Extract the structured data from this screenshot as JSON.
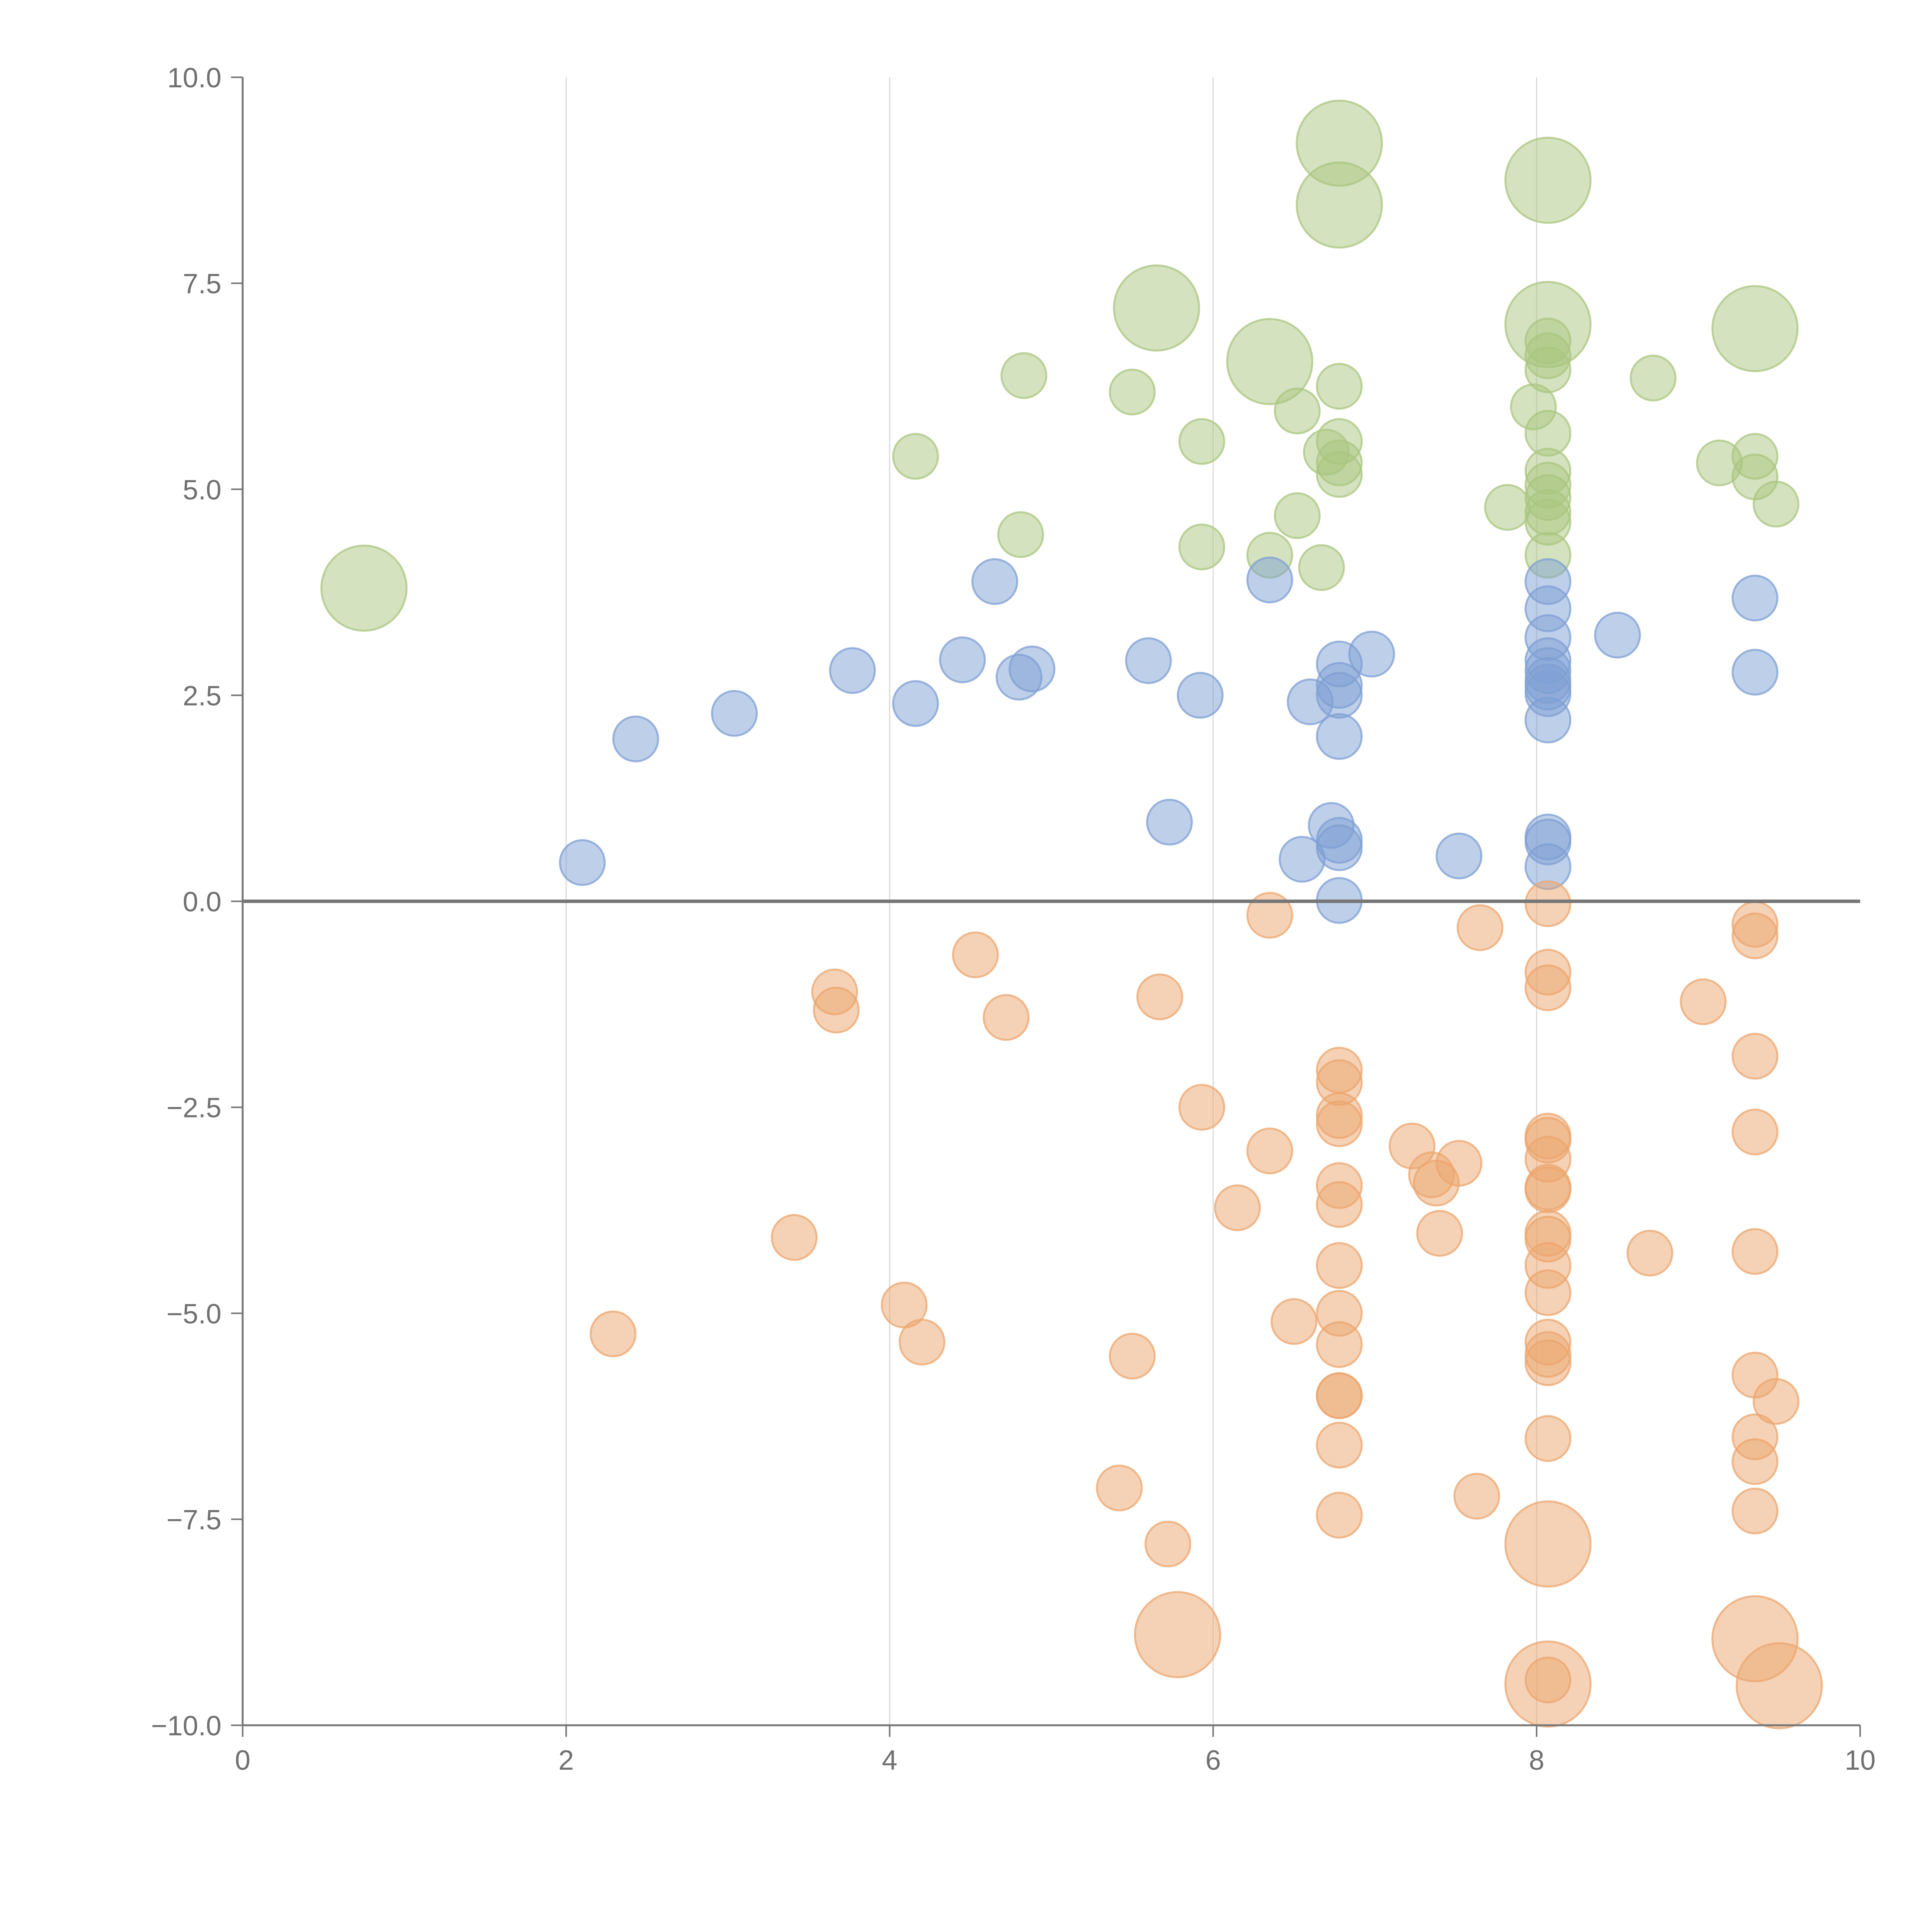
{
  "chart_data": {
    "type": "scatter",
    "title": "",
    "xlabel": "",
    "ylabel": "",
    "xlim": [
      0,
      10
    ],
    "ylim": [
      -10,
      10
    ],
    "x_ticks": [
      "0",
      "2",
      "4",
      "6",
      "8",
      "10"
    ],
    "y_ticks": [
      "10.0",
      "7.5",
      "5.0",
      "2.5",
      "0.0",
      "−2.5",
      "−5.0",
      "−7.5",
      "−10.0"
    ],
    "x_tick_values": [
      0,
      2,
      4,
      6,
      8,
      10
    ],
    "y_tick_values": [
      10,
      7.5,
      5,
      2.5,
      0,
      -2.5,
      -5,
      -7.5,
      -10
    ],
    "vertical_grid": true,
    "horizontal_grid": false,
    "zero_line": true,
    "series": [
      {
        "color": "#a9c57f",
        "points": [
          [
            0.75,
            3.8,
            1.9
          ],
          [
            6.78,
            9.2,
            1.9
          ],
          [
            8.07,
            8.75,
            1.9
          ],
          [
            6.78,
            8.45,
            1.9
          ],
          [
            5.65,
            7.2,
            1.9
          ],
          [
            8.07,
            7.0,
            1.9
          ],
          [
            9.35,
            6.95,
            1.9
          ],
          [
            6.35,
            6.55,
            1.9
          ],
          [
            4.83,
            6.38,
            1
          ],
          [
            5.5,
            6.18,
            1
          ],
          [
            6.78,
            6.25,
            1
          ],
          [
            8.72,
            6.35,
            1
          ],
          [
            8.07,
            6.8,
            1
          ],
          [
            8.07,
            6.62,
            1
          ],
          [
            8.07,
            6.45,
            1
          ],
          [
            6.52,
            5.95,
            1
          ],
          [
            7.98,
            6.0,
            1
          ],
          [
            5.93,
            5.58,
            1
          ],
          [
            6.78,
            5.58,
            1
          ],
          [
            8.07,
            5.68,
            1
          ],
          [
            4.16,
            5.4,
            1
          ],
          [
            6.7,
            5.45,
            1
          ],
          [
            6.78,
            5.32,
            1
          ],
          [
            6.78,
            5.18,
            1
          ],
          [
            8.07,
            5.22,
            1
          ],
          [
            8.07,
            5.05,
            1
          ],
          [
            8.07,
            4.9,
            1
          ],
          [
            9.35,
            5.4,
            1
          ],
          [
            9.13,
            5.32,
            1
          ],
          [
            9.35,
            5.15,
            1
          ],
          [
            9.48,
            4.82,
            1
          ],
          [
            7.82,
            4.78,
            1
          ],
          [
            8.07,
            4.72,
            1
          ],
          [
            8.07,
            4.6,
            1
          ],
          [
            6.52,
            4.68,
            1
          ],
          [
            4.81,
            4.45,
            1
          ],
          [
            5.93,
            4.3,
            1
          ],
          [
            6.35,
            4.2,
            1
          ],
          [
            6.67,
            4.05,
            1
          ],
          [
            8.07,
            4.2,
            1
          ]
        ]
      },
      {
        "color": "#7e9fd3",
        "points": [
          [
            4.65,
            3.88,
            1
          ],
          [
            6.35,
            3.9,
            1
          ],
          [
            8.07,
            3.88,
            1
          ],
          [
            8.07,
            3.55,
            1
          ],
          [
            9.35,
            3.68,
            1
          ],
          [
            8.07,
            3.2,
            1
          ],
          [
            8.5,
            3.23,
            1
          ],
          [
            3.77,
            2.8,
            1
          ],
          [
            4.45,
            2.93,
            1
          ],
          [
            4.8,
            2.72,
            1
          ],
          [
            4.88,
            2.82,
            1
          ],
          [
            5.6,
            2.92,
            1
          ],
          [
            6.98,
            3.0,
            1
          ],
          [
            6.78,
            2.88,
            1
          ],
          [
            8.07,
            2.92,
            1
          ],
          [
            8.07,
            2.8,
            1
          ],
          [
            9.35,
            2.78,
            1
          ],
          [
            3.04,
            2.28,
            1
          ],
          [
            4.16,
            2.4,
            1
          ],
          [
            5.92,
            2.5,
            1
          ],
          [
            6.6,
            2.42,
            1
          ],
          [
            6.78,
            2.62,
            1
          ],
          [
            6.78,
            2.5,
            1
          ],
          [
            8.07,
            2.68,
            1
          ],
          [
            8.07,
            2.6,
            1
          ],
          [
            8.07,
            2.52,
            1
          ],
          [
            8.07,
            2.2,
            1
          ],
          [
            2.43,
            1.97,
            1
          ],
          [
            6.78,
            2.0,
            1
          ],
          [
            5.73,
            0.96,
            1
          ],
          [
            6.73,
            0.92,
            1
          ],
          [
            6.78,
            0.74,
            1
          ],
          [
            6.78,
            0.65,
            1
          ],
          [
            8.07,
            0.78,
            1
          ],
          [
            8.07,
            0.72,
            1
          ],
          [
            2.1,
            0.47,
            1
          ],
          [
            6.55,
            0.51,
            1
          ],
          [
            7.52,
            0.55,
            1
          ],
          [
            8.07,
            0.42,
            1
          ],
          [
            6.78,
            0.01,
            1
          ]
        ]
      },
      {
        "color": "#eca66e",
        "points": [
          [
            6.35,
            -0.17,
            1
          ],
          [
            8.07,
            -0.03,
            1
          ],
          [
            7.65,
            -0.32,
            1
          ],
          [
            9.35,
            -0.28,
            1
          ],
          [
            9.35,
            -0.42,
            1
          ],
          [
            4.53,
            -0.65,
            1
          ],
          [
            3.66,
            -1.1,
            1
          ],
          [
            3.67,
            -1.32,
            1
          ],
          [
            5.67,
            -1.16,
            1
          ],
          [
            4.72,
            -1.41,
            1
          ],
          [
            8.07,
            -0.86,
            1
          ],
          [
            8.07,
            -1.05,
            1
          ],
          [
            9.03,
            -1.22,
            1
          ],
          [
            9.35,
            -1.88,
            1
          ],
          [
            6.78,
            -2.05,
            1
          ],
          [
            6.78,
            -2.2,
            1
          ],
          [
            5.93,
            -2.5,
            1
          ],
          [
            6.78,
            -2.6,
            1
          ],
          [
            6.78,
            -2.7,
            1
          ],
          [
            8.07,
            -2.85,
            1
          ],
          [
            8.07,
            -2.9,
            1
          ],
          [
            9.35,
            -2.8,
            1
          ],
          [
            7.23,
            -2.97,
            1
          ],
          [
            6.35,
            -3.03,
            1
          ],
          [
            7.52,
            -3.18,
            1
          ],
          [
            8.07,
            -3.13,
            1
          ],
          [
            7.35,
            -3.32,
            1
          ],
          [
            7.38,
            -3.42,
            1
          ],
          [
            6.78,
            -3.45,
            1
          ],
          [
            8.07,
            -3.47,
            1
          ],
          [
            8.07,
            -3.5,
            1
          ],
          [
            6.15,
            -3.72,
            1
          ],
          [
            6.78,
            -3.68,
            1
          ],
          [
            3.41,
            -4.08,
            1
          ],
          [
            7.4,
            -4.03,
            1
          ],
          [
            8.07,
            -4.03,
            1
          ],
          [
            8.07,
            -4.1,
            1
          ],
          [
            8.7,
            -4.27,
            1
          ],
          [
            9.35,
            -4.25,
            1
          ],
          [
            6.78,
            -4.42,
            1
          ],
          [
            8.07,
            -4.42,
            1
          ],
          [
            8.07,
            -4.75,
            1
          ],
          [
            4.09,
            -4.9,
            1
          ],
          [
            6.78,
            -5.0,
            1
          ],
          [
            6.5,
            -5.1,
            1
          ],
          [
            2.29,
            -5.25,
            1
          ],
          [
            4.2,
            -5.35,
            1
          ],
          [
            6.78,
            -5.38,
            1
          ],
          [
            8.07,
            -5.35,
            1
          ],
          [
            8.07,
            -5.5,
            1
          ],
          [
            8.07,
            -5.6,
            1
          ],
          [
            5.5,
            -5.52,
            1
          ],
          [
            9.35,
            -5.75,
            1
          ],
          [
            6.78,
            -6.0,
            1
          ],
          [
            6.78,
            -6.0,
            1
          ],
          [
            9.48,
            -6.07,
            1
          ],
          [
            8.07,
            -6.52,
            1
          ],
          [
            9.35,
            -6.5,
            1
          ],
          [
            6.78,
            -6.6,
            1
          ],
          [
            9.35,
            -6.8,
            1
          ],
          [
            5.42,
            -7.12,
            1
          ],
          [
            7.63,
            -7.22,
            1
          ],
          [
            6.78,
            -7.45,
            1
          ],
          [
            9.35,
            -7.4,
            1
          ],
          [
            5.72,
            -7.8,
            1
          ],
          [
            8.07,
            -7.8,
            1.9
          ],
          [
            5.78,
            -8.9,
            1.9
          ],
          [
            9.35,
            -8.95,
            1.9
          ],
          [
            8.07,
            -9.5,
            1.9
          ],
          [
            9.5,
            -9.52,
            1.9
          ],
          [
            8.07,
            -9.45,
            1
          ]
        ]
      }
    ]
  }
}
